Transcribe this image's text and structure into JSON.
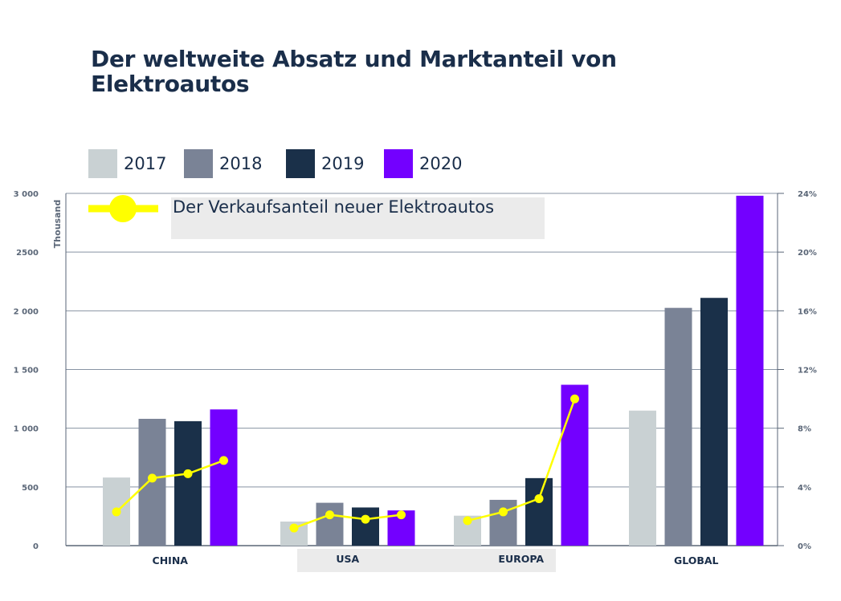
{
  "chart_data": {
    "type": "bar",
    "title": "Der weltweite Absatz und Marktanteil von Elektroautos",
    "categories": [
      "CHINA",
      "USA",
      "EUROPA",
      "GLOBAL"
    ],
    "series": [
      {
        "name": "2017",
        "color": "#c9d1d3",
        "values": [
          580,
          205,
          255,
          1150
        ]
      },
      {
        "name": "2018",
        "color": "#7a8396",
        "values": [
          1080,
          365,
          390,
          2025
        ]
      },
      {
        "name": "2019",
        "color": "#1a3049",
        "values": [
          1060,
          325,
          575,
          2110
        ]
      },
      {
        "name": "2020",
        "color": "#7300ff",
        "values": [
          1160,
          300,
          1370,
          2980
        ]
      }
    ],
    "line_series": {
      "name": "Der Verkaufsanteil neuer Elektroautos",
      "color": "#ffff00",
      "values": [
        [
          2.3,
          4.6,
          4.9,
          5.8
        ],
        [
          1.2,
          2.1,
          1.8,
          2.1
        ],
        [
          1.7,
          2.3,
          3.2,
          10.0
        ],
        [
          null,
          null,
          null,
          null
        ]
      ]
    },
    "ylabel": "Thousand",
    "ylim": [
      0,
      3000
    ],
    "yticks": [
      "0",
      "500",
      "1 000",
      "1 500",
      "2 000",
      "2500",
      "3 000"
    ],
    "y2lim": [
      0,
      24
    ],
    "y2ticks": [
      "0%",
      "4%",
      "8%",
      "12%",
      "16%",
      "20%",
      "24%"
    ]
  }
}
